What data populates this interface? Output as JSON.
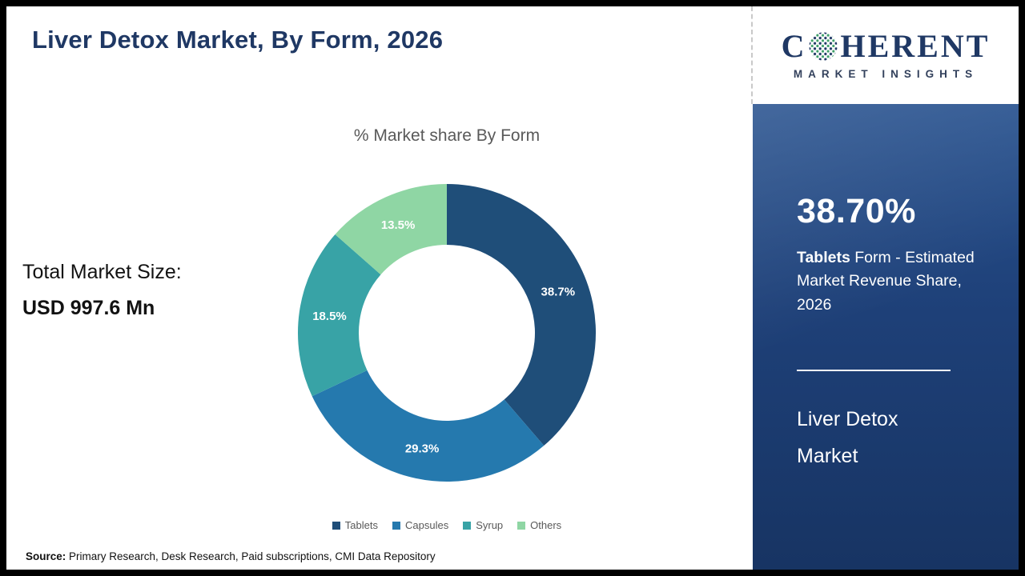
{
  "page": {
    "title": "Liver Detox Market, By Form, 2026"
  },
  "left": {
    "total_label": "Total Market Size:",
    "total_value": "USD 997.6 Mn"
  },
  "chart_data": {
    "type": "pie",
    "donut": true,
    "title": "% Market share By Form",
    "categories": [
      "Tablets",
      "Capsules",
      "Syrup",
      "Others"
    ],
    "values": [
      38.7,
      29.3,
      18.5,
      13.5
    ],
    "labels": [
      "38.7%",
      "29.3%",
      "18.5%",
      "13.5%"
    ],
    "colors": [
      "#1F4E79",
      "#2579AE",
      "#38A3A6",
      "#8FD6A4"
    ],
    "legend_position": "bottom",
    "start_angle_deg": -90,
    "direction": "clockwise"
  },
  "sidebar": {
    "stat_value": "38.70%",
    "stat_desc_bold": "Tablets",
    "stat_desc_rest": " Form - Estimated Market Revenue Share, 2026",
    "market_line1": "Liver Detox",
    "market_line2": "Market",
    "panel_color": "#1E4078"
  },
  "logo": {
    "c": "C",
    "herent": "HERENT",
    "line2": "MARKET INSIGHTS",
    "navy": "#1F3864",
    "green": "#3FA06A"
  },
  "source": {
    "label": "Source:",
    "text": " Primary Research, Desk Research, Paid subscriptions, CMI Data Repository"
  }
}
